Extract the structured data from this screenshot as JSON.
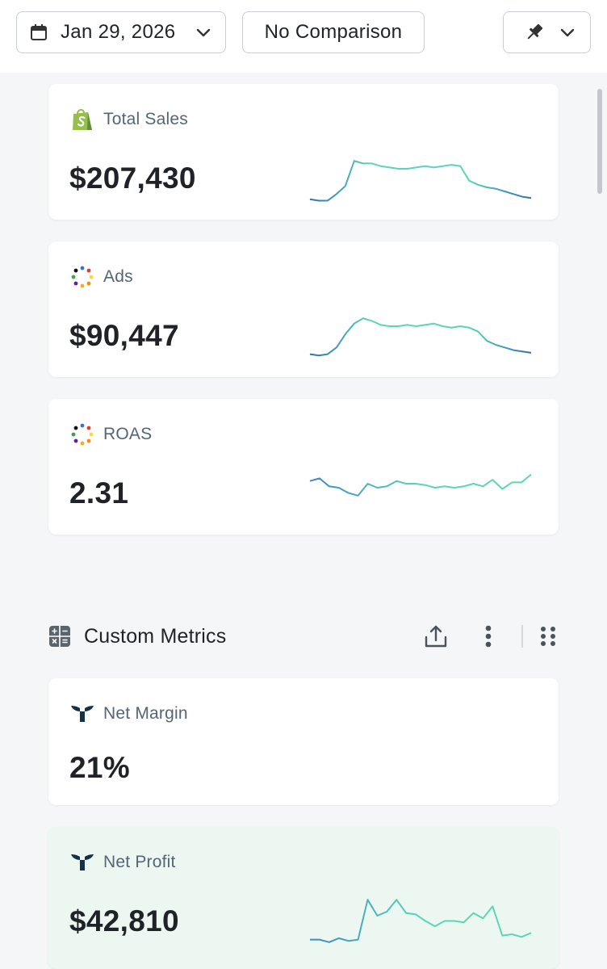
{
  "toolbar": {
    "date_label": "Jan 29, 2026",
    "comparison_label": "No Comparison"
  },
  "cards": [
    {
      "title": "Total Sales",
      "value": "$207,430",
      "icon": "shopify-icon",
      "spark": [
        8,
        7,
        7,
        12,
        18,
        37,
        35,
        35,
        33,
        32,
        31,
        31,
        32,
        33,
        32,
        33,
        34,
        33,
        22,
        19,
        17,
        16,
        14,
        12,
        10,
        9
      ]
    },
    {
      "title": "Ads",
      "value": "$90,447",
      "icon": "dots-ring-icon",
      "spark": [
        10,
        9,
        10,
        15,
        25,
        33,
        37,
        35,
        32,
        31,
        31,
        32,
        31,
        32,
        33,
        31,
        30,
        31,
        30,
        27,
        20,
        17,
        15,
        13,
        12,
        11
      ]
    },
    {
      "title": "ROAS",
      "value": "2.31",
      "icon": "dots-ring-icon",
      "spark": [
        33,
        35,
        29,
        28,
        24,
        22,
        31,
        28,
        29,
        33,
        31,
        31,
        30,
        28,
        29,
        28,
        29,
        31,
        29,
        34,
        27,
        32,
        32,
        38
      ]
    }
  ],
  "section": {
    "title": "Custom Metrics"
  },
  "custom_cards": [
    {
      "title": "Net Margin",
      "value": "21%",
      "icon": "triple-whale-icon"
    },
    {
      "title": "Net Profit",
      "value": "$42,810",
      "icon": "triple-whale-icon",
      "spark": [
        10,
        10,
        8,
        11,
        9,
        10,
        40,
        28,
        31,
        40,
        30,
        29,
        24,
        20,
        24,
        24,
        23,
        30,
        26,
        35,
        13,
        14,
        12,
        15
      ]
    }
  ]
}
